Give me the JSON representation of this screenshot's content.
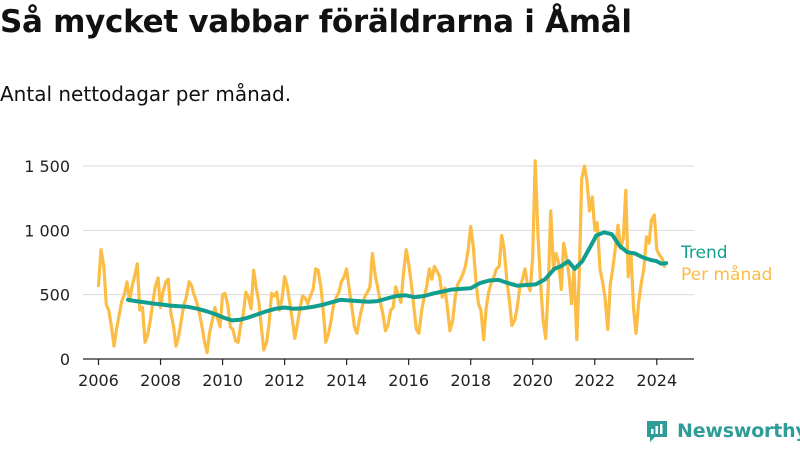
{
  "title": "Så mycket vabbar föräldrarna i Åmål",
  "subtitle": "Antal nettodagar per månad.",
  "brand": "Newsworthy",
  "colors": {
    "per_month": "#fbbd45",
    "trend": "#119e8e",
    "grid": "#d9d9d9",
    "axis": "#222222",
    "brand": "#2f9c98"
  },
  "chart_data": {
    "type": "line",
    "xlim": [
      2005.5,
      2025.2
    ],
    "ylim": [
      0,
      1550
    ],
    "x_ticks": [
      2006,
      2008,
      2010,
      2012,
      2014,
      2016,
      2018,
      2020,
      2022,
      2024
    ],
    "x_tick_labels": [
      "2006",
      "2008",
      "2010",
      "2012",
      "2014",
      "2016",
      "2018",
      "2020",
      "2022",
      "2024"
    ],
    "y_ticks": [
      0,
      500,
      1000,
      1500
    ],
    "y_tick_labels": [
      "0",
      "500",
      "1 000",
      "1 500"
    ],
    "grid": "horizontal",
    "legend": "right, at line ends",
    "series": [
      {
        "name": "Per månad",
        "color": "#fbbd45",
        "points": [
          [
            2006.0,
            570
          ],
          [
            2006.08,
            850
          ],
          [
            2006.17,
            720
          ],
          [
            2006.25,
            420
          ],
          [
            2006.33,
            380
          ],
          [
            2006.42,
            250
          ],
          [
            2006.5,
            100
          ],
          [
            2006.58,
            230
          ],
          [
            2006.67,
            350
          ],
          [
            2006.75,
            450
          ],
          [
            2006.83,
            500
          ],
          [
            2006.92,
            600
          ],
          [
            2007.0,
            450
          ],
          [
            2007.08,
            560
          ],
          [
            2007.17,
            650
          ],
          [
            2007.25,
            740
          ],
          [
            2007.33,
            380
          ],
          [
            2007.42,
            400
          ],
          [
            2007.5,
            130
          ],
          [
            2007.58,
            180
          ],
          [
            2007.67,
            300
          ],
          [
            2007.75,
            440
          ],
          [
            2007.83,
            560
          ],
          [
            2007.92,
            630
          ],
          [
            2008.0,
            400
          ],
          [
            2008.08,
            520
          ],
          [
            2008.17,
            600
          ],
          [
            2008.25,
            620
          ],
          [
            2008.33,
            360
          ],
          [
            2008.42,
            250
          ],
          [
            2008.5,
            100
          ],
          [
            2008.58,
            170
          ],
          [
            2008.67,
            300
          ],
          [
            2008.75,
            420
          ],
          [
            2008.83,
            480
          ],
          [
            2008.92,
            600
          ],
          [
            2009.0,
            570
          ],
          [
            2009.08,
            500
          ],
          [
            2009.17,
            440
          ],
          [
            2009.25,
            360
          ],
          [
            2009.33,
            260
          ],
          [
            2009.42,
            130
          ],
          [
            2009.5,
            50
          ],
          [
            2009.58,
            200
          ],
          [
            2009.67,
            300
          ],
          [
            2009.75,
            400
          ],
          [
            2009.83,
            320
          ],
          [
            2009.92,
            250
          ],
          [
            2010.0,
            500
          ],
          [
            2010.08,
            510
          ],
          [
            2010.17,
            420
          ],
          [
            2010.25,
            250
          ],
          [
            2010.33,
            230
          ],
          [
            2010.42,
            140
          ],
          [
            2010.5,
            130
          ],
          [
            2010.58,
            260
          ],
          [
            2010.67,
            350
          ],
          [
            2010.75,
            520
          ],
          [
            2010.83,
            480
          ],
          [
            2010.92,
            390
          ],
          [
            2011.0,
            690
          ],
          [
            2011.08,
            560
          ],
          [
            2011.17,
            440
          ],
          [
            2011.25,
            250
          ],
          [
            2011.33,
            70
          ],
          [
            2011.42,
            130
          ],
          [
            2011.5,
            280
          ],
          [
            2011.58,
            510
          ],
          [
            2011.67,
            490
          ],
          [
            2011.75,
            520
          ],
          [
            2011.83,
            380
          ],
          [
            2011.92,
            470
          ],
          [
            2012.0,
            640
          ],
          [
            2012.08,
            570
          ],
          [
            2012.17,
            430
          ],
          [
            2012.25,
            300
          ],
          [
            2012.33,
            160
          ],
          [
            2012.42,
            280
          ],
          [
            2012.5,
            400
          ],
          [
            2012.58,
            490
          ],
          [
            2012.67,
            470
          ],
          [
            2012.75,
            430
          ],
          [
            2012.83,
            490
          ],
          [
            2012.92,
            540
          ],
          [
            2013.0,
            700
          ],
          [
            2013.08,
            690
          ],
          [
            2013.17,
            560
          ],
          [
            2013.25,
            360
          ],
          [
            2013.33,
            130
          ],
          [
            2013.42,
            200
          ],
          [
            2013.5,
            300
          ],
          [
            2013.58,
            420
          ],
          [
            2013.67,
            480
          ],
          [
            2013.75,
            520
          ],
          [
            2013.83,
            600
          ],
          [
            2013.92,
            640
          ],
          [
            2014.0,
            700
          ],
          [
            2014.08,
            550
          ],
          [
            2014.17,
            400
          ],
          [
            2014.25,
            250
          ],
          [
            2014.33,
            200
          ],
          [
            2014.42,
            320
          ],
          [
            2014.5,
            400
          ],
          [
            2014.58,
            480
          ],
          [
            2014.67,
            520
          ],
          [
            2014.75,
            560
          ],
          [
            2014.83,
            820
          ],
          [
            2014.92,
            650
          ],
          [
            2015.0,
            560
          ],
          [
            2015.08,
            450
          ],
          [
            2015.17,
            350
          ],
          [
            2015.25,
            220
          ],
          [
            2015.33,
            260
          ],
          [
            2015.42,
            380
          ],
          [
            2015.5,
            400
          ],
          [
            2015.58,
            560
          ],
          [
            2015.67,
            500
          ],
          [
            2015.75,
            440
          ],
          [
            2015.83,
            660
          ],
          [
            2015.92,
            850
          ],
          [
            2016.0,
            740
          ],
          [
            2016.08,
            600
          ],
          [
            2016.17,
            400
          ],
          [
            2016.25,
            230
          ],
          [
            2016.33,
            200
          ],
          [
            2016.42,
            380
          ],
          [
            2016.5,
            480
          ],
          [
            2016.58,
            560
          ],
          [
            2016.67,
            700
          ],
          [
            2016.75,
            620
          ],
          [
            2016.83,
            720
          ],
          [
            2016.92,
            680
          ],
          [
            2017.0,
            640
          ],
          [
            2017.08,
            480
          ],
          [
            2017.17,
            550
          ],
          [
            2017.25,
            400
          ],
          [
            2017.33,
            220
          ],
          [
            2017.42,
            300
          ],
          [
            2017.5,
            480
          ],
          [
            2017.58,
            580
          ],
          [
            2017.67,
            620
          ],
          [
            2017.75,
            660
          ],
          [
            2017.83,
            720
          ],
          [
            2017.92,
            850
          ],
          [
            2018.0,
            1030
          ],
          [
            2018.08,
            880
          ],
          [
            2018.17,
            600
          ],
          [
            2018.25,
            430
          ],
          [
            2018.33,
            380
          ],
          [
            2018.42,
            150
          ],
          [
            2018.5,
            400
          ],
          [
            2018.58,
            520
          ],
          [
            2018.67,
            600
          ],
          [
            2018.75,
            640
          ],
          [
            2018.83,
            700
          ],
          [
            2018.92,
            720
          ],
          [
            2019.0,
            960
          ],
          [
            2019.08,
            850
          ],
          [
            2019.17,
            600
          ],
          [
            2019.25,
            450
          ],
          [
            2019.33,
            260
          ],
          [
            2019.42,
            300
          ],
          [
            2019.5,
            400
          ],
          [
            2019.58,
            550
          ],
          [
            2019.67,
            620
          ],
          [
            2019.75,
            700
          ],
          [
            2019.83,
            580
          ],
          [
            2019.92,
            530
          ],
          [
            2020.0,
            800
          ],
          [
            2020.08,
            1540
          ],
          [
            2020.17,
            960
          ],
          [
            2020.25,
            600
          ],
          [
            2020.33,
            310
          ],
          [
            2020.42,
            160
          ],
          [
            2020.5,
            550
          ],
          [
            2020.58,
            1150
          ],
          [
            2020.67,
            700
          ],
          [
            2020.75,
            820
          ],
          [
            2020.83,
            750
          ],
          [
            2020.92,
            540
          ],
          [
            2021.0,
            900
          ],
          [
            2021.08,
            800
          ],
          [
            2021.17,
            650
          ],
          [
            2021.25,
            430
          ],
          [
            2021.33,
            700
          ],
          [
            2021.42,
            150
          ],
          [
            2021.5,
            650
          ],
          [
            2021.58,
            1400
          ],
          [
            2021.67,
            1500
          ],
          [
            2021.75,
            1380
          ],
          [
            2021.83,
            1150
          ],
          [
            2021.92,
            1260
          ],
          [
            2022.0,
            1000
          ],
          [
            2022.08,
            1060
          ],
          [
            2022.17,
            700
          ],
          [
            2022.25,
            600
          ],
          [
            2022.33,
            480
          ],
          [
            2022.42,
            230
          ],
          [
            2022.5,
            580
          ],
          [
            2022.58,
            700
          ],
          [
            2022.67,
            870
          ],
          [
            2022.75,
            1040
          ],
          [
            2022.83,
            860
          ],
          [
            2022.92,
            940
          ],
          [
            2023.0,
            1310
          ],
          [
            2023.08,
            640
          ],
          [
            2023.17,
            820
          ],
          [
            2023.25,
            400
          ],
          [
            2023.33,
            200
          ],
          [
            2023.42,
            450
          ],
          [
            2023.5,
            590
          ],
          [
            2023.58,
            700
          ],
          [
            2023.67,
            950
          ],
          [
            2023.75,
            900
          ],
          [
            2023.83,
            1080
          ],
          [
            2023.92,
            1120
          ],
          [
            2024.0,
            850
          ],
          [
            2024.08,
            810
          ],
          [
            2024.17,
            780
          ],
          [
            2024.25,
            720
          ]
        ]
      },
      {
        "name": "Trend",
        "color": "#119e8e",
        "points": [
          [
            2006.95,
            460
          ],
          [
            2007.2,
            450
          ],
          [
            2007.5,
            440
          ],
          [
            2007.8,
            430
          ],
          [
            2008.0,
            425
          ],
          [
            2008.3,
            415
          ],
          [
            2008.6,
            410
          ],
          [
            2008.9,
            405
          ],
          [
            2009.2,
            390
          ],
          [
            2009.5,
            370
          ],
          [
            2009.8,
            345
          ],
          [
            2010.05,
            320
          ],
          [
            2010.3,
            300
          ],
          [
            2010.55,
            305
          ],
          [
            2010.8,
            320
          ],
          [
            2011.1,
            345
          ],
          [
            2011.4,
            370
          ],
          [
            2011.7,
            390
          ],
          [
            2012.0,
            400
          ],
          [
            2012.3,
            390
          ],
          [
            2012.6,
            395
          ],
          [
            2012.9,
            405
          ],
          [
            2013.2,
            420
          ],
          [
            2013.5,
            440
          ],
          [
            2013.8,
            460
          ],
          [
            2014.1,
            455
          ],
          [
            2014.4,
            450
          ],
          [
            2014.7,
            445
          ],
          [
            2015.0,
            450
          ],
          [
            2015.3,
            470
          ],
          [
            2015.6,
            490
          ],
          [
            2015.9,
            495
          ],
          [
            2016.2,
            480
          ],
          [
            2016.5,
            490
          ],
          [
            2016.8,
            510
          ],
          [
            2017.1,
            525
          ],
          [
            2017.4,
            540
          ],
          [
            2017.7,
            545
          ],
          [
            2018.0,
            550
          ],
          [
            2018.3,
            590
          ],
          [
            2018.6,
            610
          ],
          [
            2018.9,
            615
          ],
          [
            2019.2,
            590
          ],
          [
            2019.5,
            570
          ],
          [
            2019.8,
            575
          ],
          [
            2020.1,
            580
          ],
          [
            2020.4,
            620
          ],
          [
            2020.7,
            700
          ],
          [
            2020.9,
            720
          ],
          [
            2021.15,
            760
          ],
          [
            2021.35,
            700
          ],
          [
            2021.6,
            760
          ],
          [
            2021.85,
            870
          ],
          [
            2022.05,
            960
          ],
          [
            2022.3,
            985
          ],
          [
            2022.55,
            970
          ],
          [
            2022.8,
            880
          ],
          [
            2023.05,
            830
          ],
          [
            2023.3,
            820
          ],
          [
            2023.55,
            790
          ],
          [
            2023.8,
            770
          ],
          [
            2024.0,
            760
          ],
          [
            2024.15,
            740
          ],
          [
            2024.3,
            745
          ]
        ]
      }
    ]
  }
}
